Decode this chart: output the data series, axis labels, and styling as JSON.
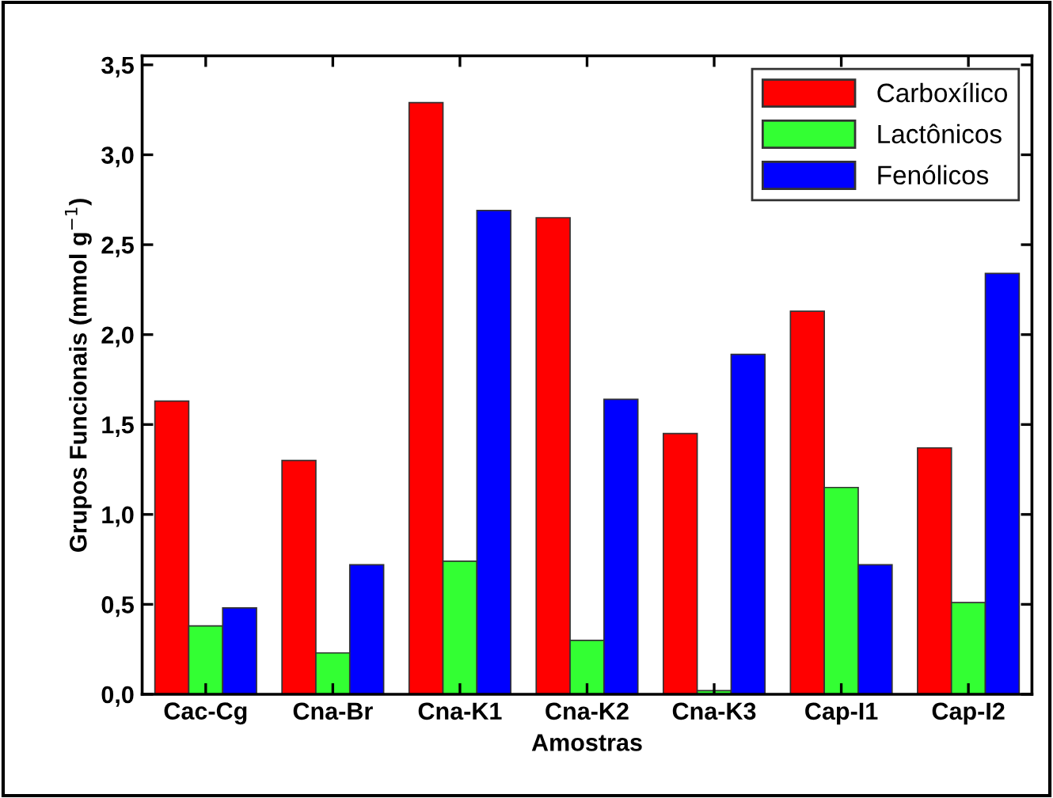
{
  "chart_data": {
    "type": "bar",
    "xlabel": "Amostras",
    "ylabel": "Grupos Funcionais (mmol g$^{−1}$)",
    "categories": [
      "Cac-Cg",
      "Cna-Br",
      "Cna-K1",
      "Cna-K2",
      "Cna-K3",
      "Cap-I1",
      "Cap-I2"
    ],
    "series": [
      {
        "name": "Carboxílico",
        "color": "#ff0000",
        "values": [
          1.63,
          1.3,
          3.29,
          2.65,
          1.45,
          2.13,
          1.37
        ]
      },
      {
        "name": "Lactônicos",
        "color": "#33ff33",
        "values": [
          0.38,
          0.23,
          0.74,
          0.3,
          0.02,
          1.15,
          0.51
        ]
      },
      {
        "name": "Fenólicos",
        "color": "#0000ff",
        "values": [
          0.48,
          0.72,
          2.69,
          1.64,
          1.89,
          0.72,
          2.34
        ]
      }
    ],
    "ylim": [
      0,
      3.55
    ],
    "yticks": [
      {
        "value": 0,
        "label": "0,0"
      },
      {
        "value": 0.5,
        "label": "0,5"
      },
      {
        "value": 1,
        "label": "1,0"
      },
      {
        "value": 1.5,
        "label": "1,5"
      },
      {
        "value": 2,
        "label": "2,0"
      },
      {
        "value": 2.5,
        "label": "2,5"
      },
      {
        "value": 3,
        "label": "3,0"
      },
      {
        "value": 3.5,
        "label": "3,5"
      }
    ],
    "grid": false,
    "legend": "top right"
  }
}
